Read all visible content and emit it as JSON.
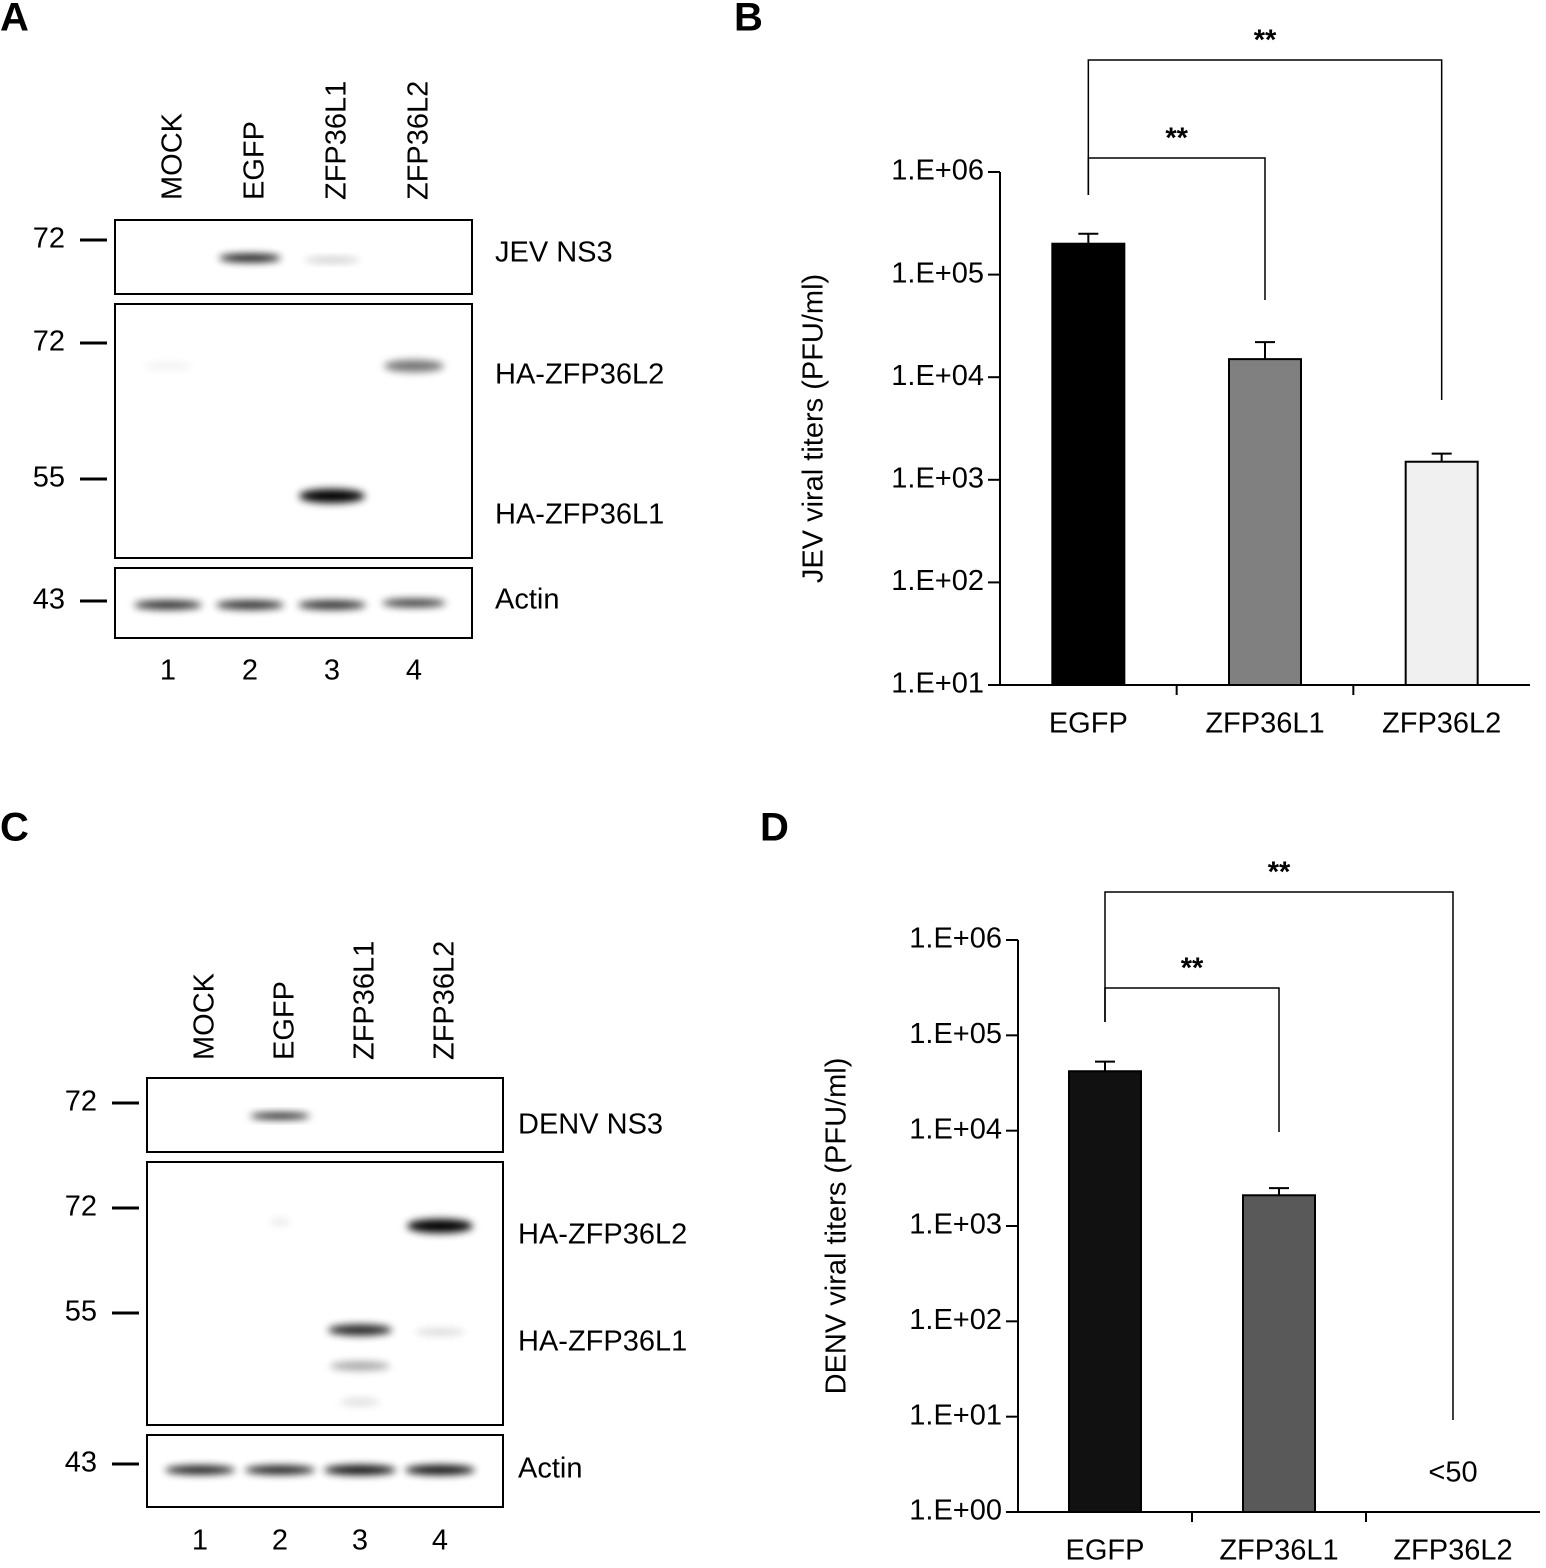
{
  "panels": [
    "A",
    "B",
    "C",
    "D"
  ],
  "blots": [
    {
      "lanes": [
        "MOCK",
        "EGFP",
        "ZFP36L1",
        "ZFP36L2"
      ],
      "lane_numbers": [
        1,
        2,
        3,
        4
      ],
      "markers": [
        72,
        72,
        55,
        43
      ],
      "proteins": [
        "JEV NS3",
        "HA-ZFP36L2",
        "HA-ZFP36L1",
        "Actin"
      ]
    },
    {
      "lanes": [
        "MOCK",
        "EGFP",
        "ZFP36L1",
        "ZFP36L2"
      ],
      "lane_numbers": [
        1,
        2,
        3,
        4
      ],
      "markers": [
        72,
        72,
        55,
        43
      ],
      "proteins": [
        "DENV NS3",
        "HA-ZFP36L2",
        "HA-ZFP36L1",
        "Actin"
      ]
    }
  ],
  "chart_data": [
    {
      "type": "bar",
      "y_label": "JEV viral titers (PFU/ml)",
      "log_scale": true,
      "categories": [
        "EGFP",
        "ZFP36L1",
        "ZFP36L2"
      ],
      "values": [
        200000,
        15000,
        1500
      ],
      "errors": [
        50000,
        7000,
        300
      ],
      "colors": [
        "#000000",
        "#808080",
        "#f0f0f0"
      ],
      "ylim": [
        10,
        1000000
      ],
      "yticks": [
        {
          "value": 10,
          "label": "1.E+01"
        },
        {
          "value": 100,
          "label": "1.E+02"
        },
        {
          "value": 1000,
          "label": "1.E+03"
        },
        {
          "value": 10000,
          "label": "1.E+04"
        },
        {
          "value": 100000,
          "label": "1.E+05"
        },
        {
          "value": 1000000,
          "label": "1.E+06"
        }
      ],
      "significance": [
        "**",
        "**"
      ]
    },
    {
      "type": "bar",
      "y_label": "DENV viral titers (PFU/ml)",
      "log_scale": true,
      "categories": [
        "EGFP",
        "ZFP36L1",
        "ZFP36L2"
      ],
      "values": [
        42000,
        2100,
        null
      ],
      "errors": [
        11000,
        400,
        null
      ],
      "value_labels": [
        null,
        null,
        "<50"
      ],
      "colors": [
        "#111111",
        "#595959",
        "#ffffff"
      ],
      "ylim": [
        1,
        1000000
      ],
      "yticks": [
        {
          "value": 1,
          "label": "1.E+00"
        },
        {
          "value": 10,
          "label": "1.E+01"
        },
        {
          "value": 100,
          "label": "1.E+02"
        },
        {
          "value": 1000,
          "label": "1.E+03"
        },
        {
          "value": 10000,
          "label": "1.E+04"
        },
        {
          "value": 100000,
          "label": "1.E+05"
        },
        {
          "value": 1000000,
          "label": "1.E+06"
        }
      ],
      "significance": [
        "**",
        "**"
      ]
    }
  ]
}
